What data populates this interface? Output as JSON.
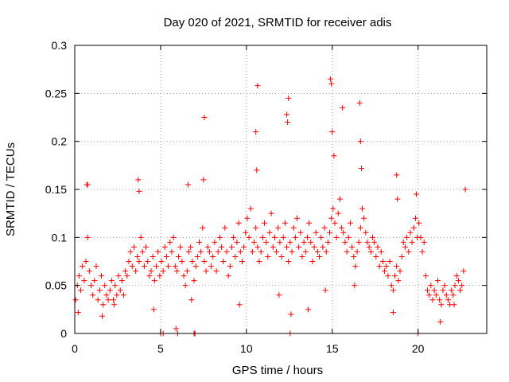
{
  "colors": {
    "series": "#ff0000",
    "axis": "#000000",
    "grid": "#a0a0a0"
  },
  "chart_data": {
    "type": "scatter",
    "title": "Day 020 of 2021, SRMTID for receiver adis",
    "xlabel": "GPS time / hours",
    "ylabel": "SRMTID / TECUs",
    "xlim": [
      0,
      24
    ],
    "ylim": [
      0,
      0.3
    ],
    "xticks": [
      0,
      5,
      10,
      15,
      20
    ],
    "xtick_labels": [
      "0",
      "5",
      "10",
      "15",
      "20"
    ],
    "yticks": [
      0,
      0.05,
      0.1,
      0.15,
      0.2,
      0.25,
      0.3
    ],
    "ytick_labels": [
      "0",
      "0.05",
      "0.1",
      "0.15",
      "0.2",
      "0.25",
      "0.3"
    ],
    "grid": true,
    "marker": "+",
    "series": [
      {
        "name": "SRMTID",
        "color": "#ff0000",
        "x": [
          0.05,
          0.15,
          0.25,
          0.35,
          0.45,
          0.55,
          0.65,
          0.75,
          0.85,
          0.95,
          1.05,
          1.15,
          1.25,
          1.35,
          1.45,
          1.55,
          1.65,
          1.75,
          1.85,
          1.95,
          2.05,
          2.15,
          2.25,
          2.35,
          2.45,
          2.55,
          2.65,
          2.75,
          2.85,
          2.95,
          3.05,
          3.15,
          3.25,
          3.35,
          3.45,
          3.55,
          3.65,
          3.75,
          3.85,
          3.95,
          4.05,
          4.15,
          4.25,
          4.35,
          4.45,
          4.55,
          4.65,
          4.75,
          4.85,
          4.95,
          5.05,
          5.15,
          5.25,
          5.35,
          5.45,
          5.55,
          5.65,
          5.75,
          5.85,
          5.95,
          6.05,
          6.15,
          6.25,
          6.35,
          6.45,
          6.55,
          6.65,
          6.75,
          6.85,
          6.95,
          7.05,
          7.15,
          7.25,
          7.35,
          7.45,
          7.55,
          7.65,
          7.75,
          7.85,
          7.95,
          8.05,
          8.15,
          8.25,
          8.35,
          8.45,
          8.55,
          8.65,
          8.75,
          8.85,
          8.95,
          9.05,
          9.15,
          9.25,
          9.35,
          9.45,
          9.55,
          9.65,
          9.75,
          9.85,
          9.95,
          10.05,
          10.15,
          10.25,
          10.35,
          10.45,
          10.55,
          10.65,
          10.75,
          10.85,
          10.95,
          11.05,
          11.15,
          11.25,
          11.35,
          11.45,
          11.55,
          11.65,
          11.75,
          11.85,
          11.95,
          12.05,
          12.15,
          12.25,
          12.35,
          12.45,
          12.55,
          12.65,
          12.75,
          12.85,
          12.95,
          13.05,
          13.15,
          13.25,
          13.35,
          13.45,
          13.55,
          13.65,
          13.75,
          13.85,
          13.95,
          14.05,
          14.15,
          14.25,
          14.35,
          14.45,
          14.55,
          14.65,
          14.75,
          14.85,
          14.95,
          15.05,
          15.15,
          15.25,
          15.35,
          15.45,
          15.55,
          15.65,
          15.75,
          15.85,
          15.95,
          16.05,
          16.15,
          16.25,
          16.35,
          16.45,
          16.55,
          16.65,
          16.75,
          16.85,
          16.95,
          17.05,
          17.15,
          17.25,
          17.35,
          17.45,
          17.55,
          17.65,
          17.75,
          17.85,
          17.95,
          18.05,
          18.15,
          18.25,
          18.35,
          18.45,
          18.55,
          18.65,
          18.75,
          18.85,
          18.95,
          19.05,
          19.15,
          19.25,
          19.35,
          19.45,
          19.55,
          19.65,
          19.75,
          19.85,
          19.95,
          20.05,
          20.15,
          20.25,
          20.35,
          20.45,
          20.55,
          20.65,
          20.75,
          20.85,
          20.95,
          21.05,
          21.15,
          21.25,
          21.35,
          21.45,
          21.55,
          21.65,
          21.75,
          21.85,
          21.95,
          22.05,
          22.15,
          22.25,
          22.35,
          22.45,
          22.55,
          22.65,
          22.75,
          0.7,
          0.75,
          3.7,
          3.75,
          6.6,
          7.5,
          7.55,
          10.55,
          10.6,
          10.65,
          12.35,
          12.4,
          12.45,
          14.9,
          14.95,
          15.0,
          15.1,
          15.6,
          16.6,
          16.65,
          16.7,
          18.75,
          18.8,
          19.9,
          20.0,
          5.0,
          5.15,
          5.9,
          6.0,
          6.95,
          7.0,
          12.55,
          12.6,
          0.2,
          1.6,
          2.3,
          4.6,
          6.8,
          9.6,
          11.9,
          13.6,
          14.6,
          16.3,
          18.55,
          21.3,
          22.1
        ],
        "y": [
          0.035,
          0.05,
          0.06,
          0.045,
          0.07,
          0.055,
          0.075,
          0.1,
          0.065,
          0.05,
          0.04,
          0.055,
          0.07,
          0.035,
          0.045,
          0.06,
          0.03,
          0.05,
          0.04,
          0.035,
          0.045,
          0.055,
          0.035,
          0.05,
          0.04,
          0.06,
          0.045,
          0.055,
          0.04,
          0.065,
          0.06,
          0.075,
          0.085,
          0.07,
          0.09,
          0.065,
          0.08,
          0.075,
          0.1,
          0.085,
          0.07,
          0.09,
          0.075,
          0.06,
          0.065,
          0.08,
          0.055,
          0.07,
          0.085,
          0.06,
          0.075,
          0.065,
          0.09,
          0.08,
          0.07,
          0.095,
          0.085,
          0.1,
          0.07,
          0.065,
          0.08,
          0.09,
          0.075,
          0.06,
          0.05,
          0.065,
          0.085,
          0.09,
          0.075,
          0.055,
          0.07,
          0.08,
          0.095,
          0.085,
          0.11,
          0.075,
          0.065,
          0.09,
          0.085,
          0.07,
          0.08,
          0.095,
          0.065,
          0.085,
          0.1,
          0.09,
          0.075,
          0.11,
          0.085,
          0.06,
          0.07,
          0.09,
          0.1,
          0.08,
          0.095,
          0.115,
          0.085,
          0.075,
          0.09,
          0.105,
          0.12,
          0.1,
          0.13,
          0.085,
          0.095,
          0.11,
          0.09,
          0.075,
          0.085,
          0.1,
          0.115,
          0.095,
          0.08,
          0.105,
          0.125,
          0.09,
          0.1,
          0.085,
          0.11,
          0.095,
          0.08,
          0.1,
          0.115,
          0.09,
          0.075,
          0.095,
          0.085,
          0.11,
          0.1,
          0.12,
          0.09,
          0.105,
          0.08,
          0.095,
          0.085,
          0.1,
          0.115,
          0.095,
          0.075,
          0.09,
          0.105,
          0.085,
          0.08,
          0.1,
          0.09,
          0.11,
          0.085,
          0.095,
          0.105,
          0.12,
          0.13,
          0.115,
          0.1,
          0.125,
          0.14,
          0.11,
          0.105,
          0.095,
          0.085,
          0.1,
          0.115,
          0.09,
          0.08,
          0.07,
          0.085,
          0.095,
          0.11,
          0.13,
          0.12,
          0.105,
          0.095,
          0.09,
          0.085,
          0.1,
          0.095,
          0.08,
          0.09,
          0.07,
          0.085,
          0.075,
          0.065,
          0.07,
          0.06,
          0.075,
          0.05,
          0.045,
          0.06,
          0.07,
          0.055,
          0.065,
          0.08,
          0.095,
          0.09,
          0.1,
          0.085,
          0.105,
          0.095,
          0.11,
          0.12,
          0.1,
          0.115,
          0.1,
          0.085,
          0.095,
          0.06,
          0.045,
          0.04,
          0.05,
          0.035,
          0.045,
          0.04,
          0.055,
          0.035,
          0.03,
          0.045,
          0.05,
          0.04,
          0.035,
          0.03,
          0.045,
          0.04,
          0.05,
          0.06,
          0.055,
          0.045,
          0.05,
          0.065,
          0.15,
          0.155,
          0.155,
          0.16,
          0.148,
          0.155,
          0.16,
          0.225,
          0.21,
          0.17,
          0.258,
          0.228,
          0.22,
          0.245,
          0.265,
          0.26,
          0.21,
          0.185,
          0.235,
          0.24,
          0.2,
          0.172,
          0.165,
          0.14,
          0.145,
          0,
          0,
          0,
          0.005,
          0,
          0,
          0,
          0,
          0.02,
          0.022,
          0.018,
          0.03,
          0.025,
          0.035,
          0.03,
          0.04,
          0.025,
          0.045,
          0.05,
          0.022,
          0.012,
          0.03
        ]
      }
    ]
  }
}
